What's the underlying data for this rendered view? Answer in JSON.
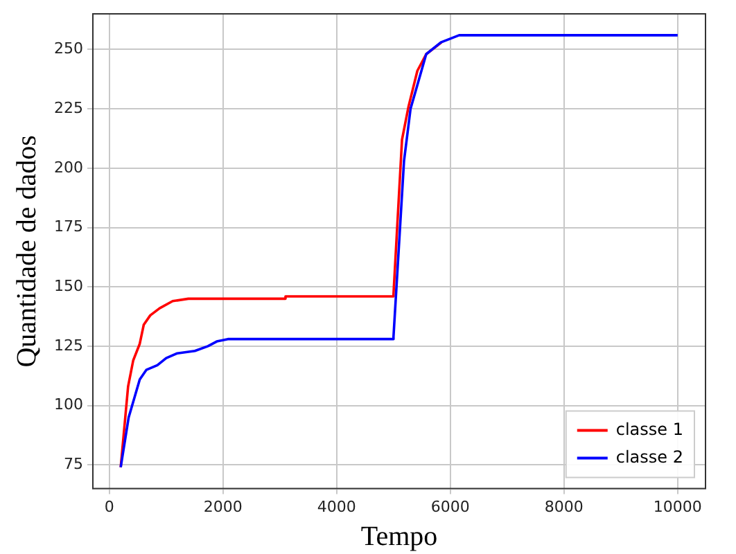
{
  "chart_data": {
    "type": "line",
    "xlabel": "Tempo",
    "ylabel": "Quantidade de dados",
    "xlim": [
      -290,
      10490
    ],
    "ylim": [
      65,
      265
    ],
    "xticks": [
      0,
      2000,
      4000,
      6000,
      8000,
      10000
    ],
    "yticks": [
      75,
      100,
      125,
      150,
      175,
      200,
      225,
      250
    ],
    "grid": true,
    "legend": "bottom right",
    "line_style": "solid",
    "series": [
      {
        "name": "classe 1",
        "color": "#ff0000",
        "x": [
          200,
          330,
          420,
          535,
          605,
          720,
          885,
          1115,
          1390,
          3090,
          3100,
          4995,
          5000,
          5150,
          5265,
          5420,
          5575,
          5845
        ],
        "values": [
          74,
          108,
          119,
          126,
          134,
          138,
          141,
          144,
          145,
          145,
          146,
          146,
          147,
          212,
          226,
          241,
          248,
          253
        ]
      },
      {
        "name": "classe 2",
        "color": "#0000ff",
        "x": [
          200,
          340,
          535,
          650,
          845,
          1000,
          1195,
          1505,
          1735,
          1890,
          2085,
          4995,
          5000,
          5185,
          5300,
          5420,
          5575,
          5835,
          6155,
          10000
        ],
        "values": [
          74,
          95,
          111,
          115,
          117,
          120,
          122,
          123,
          125,
          127,
          128,
          128,
          129,
          203,
          225,
          235,
          248,
          253,
          256,
          256
        ]
      }
    ]
  }
}
